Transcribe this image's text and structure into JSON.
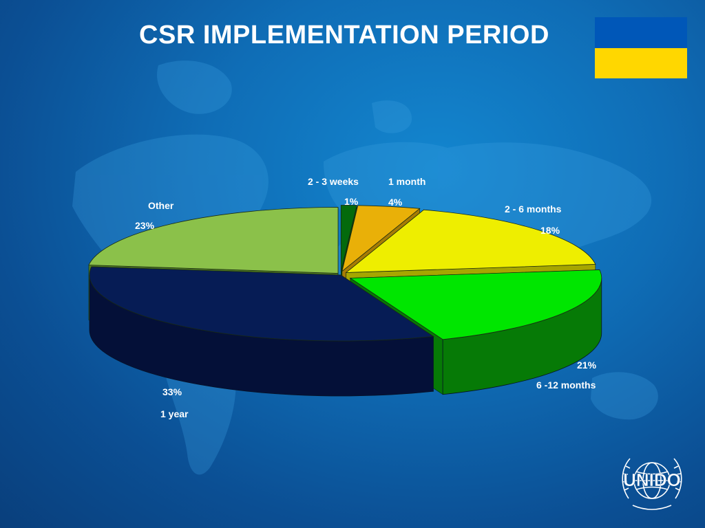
{
  "slide": {
    "title": "CSR IMPLEMENTATION PERIOD",
    "logo_text": "UNIDO",
    "flag_colors": [
      "#0057b8",
      "#ffd700"
    ]
  },
  "chart_data": {
    "type": "pie",
    "title": "CSR IMPLEMENTATION PERIOD",
    "three_d": true,
    "start_angle_deg": 270,
    "slices": [
      {
        "label": "2 - 3 weeks",
        "value": 1,
        "value_text": "1%",
        "color": "#046a0c",
        "side": "#034a08",
        "explode": 10
      },
      {
        "label": "1 month",
        "value": 4,
        "value_text": "4%",
        "color": "#e9b008",
        "side": "#a67c05",
        "explode": 10
      },
      {
        "label": "2 - 6 months",
        "value": 18,
        "value_text": "18%",
        "color": "#eeee00",
        "side": "#a6a600",
        "explode": 10
      },
      {
        "label": "6 -12 months",
        "value": 21,
        "value_text": "21%",
        "color": "#00e600",
        "side": "#067a06",
        "explode": 16
      },
      {
        "label": "1 year",
        "value": 33,
        "value_text": "33%",
        "color": "#061c55",
        "side": "#041038",
        "explode": 0
      },
      {
        "label": "Other",
        "value": 23,
        "value_text": "23%",
        "color": "#8bc14a",
        "side": "#4f7a22",
        "explode": 6
      }
    ]
  }
}
